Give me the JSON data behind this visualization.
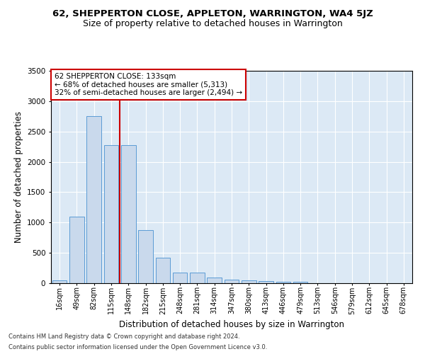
{
  "title": "62, SHEPPERTON CLOSE, APPLETON, WARRINGTON, WA4 5JZ",
  "subtitle": "Size of property relative to detached houses in Warrington",
  "xlabel": "Distribution of detached houses by size in Warrington",
  "ylabel": "Number of detached properties",
  "categories": [
    "16sqm",
    "49sqm",
    "82sqm",
    "115sqm",
    "148sqm",
    "182sqm",
    "215sqm",
    "248sqm",
    "281sqm",
    "314sqm",
    "347sqm",
    "380sqm",
    "413sqm",
    "446sqm",
    "479sqm",
    "513sqm",
    "546sqm",
    "579sqm",
    "612sqm",
    "645sqm",
    "678sqm"
  ],
  "values": [
    50,
    1100,
    2750,
    2270,
    2280,
    870,
    420,
    175,
    170,
    90,
    60,
    50,
    35,
    20,
    20,
    5,
    5,
    0,
    0,
    0,
    0
  ],
  "bar_color": "#c9d9ec",
  "bar_edge_color": "#5b9bd5",
  "vline_position": 3.5,
  "vline_color": "#cc0000",
  "annotation_line1": "62 SHEPPERTON CLOSE: 133sqm",
  "annotation_line2": "← 68% of detached houses are smaller (5,313)",
  "annotation_line3": "32% of semi-detached houses are larger (2,494) →",
  "annotation_box_color": "#cc0000",
  "ylim": [
    0,
    3500
  ],
  "yticks": [
    0,
    500,
    1000,
    1500,
    2000,
    2500,
    3000,
    3500
  ],
  "bg_color": "#dce9f5",
  "footer1": "Contains HM Land Registry data © Crown copyright and database right 2024.",
  "footer2": "Contains public sector information licensed under the Open Government Licence v3.0.",
  "title_fontsize": 9.5,
  "subtitle_fontsize": 9,
  "xlabel_fontsize": 8.5,
  "ylabel_fontsize": 8.5,
  "annotation_fontsize": 7.5,
  "tick_fontsize": 7,
  "ytick_fontsize": 7.5
}
